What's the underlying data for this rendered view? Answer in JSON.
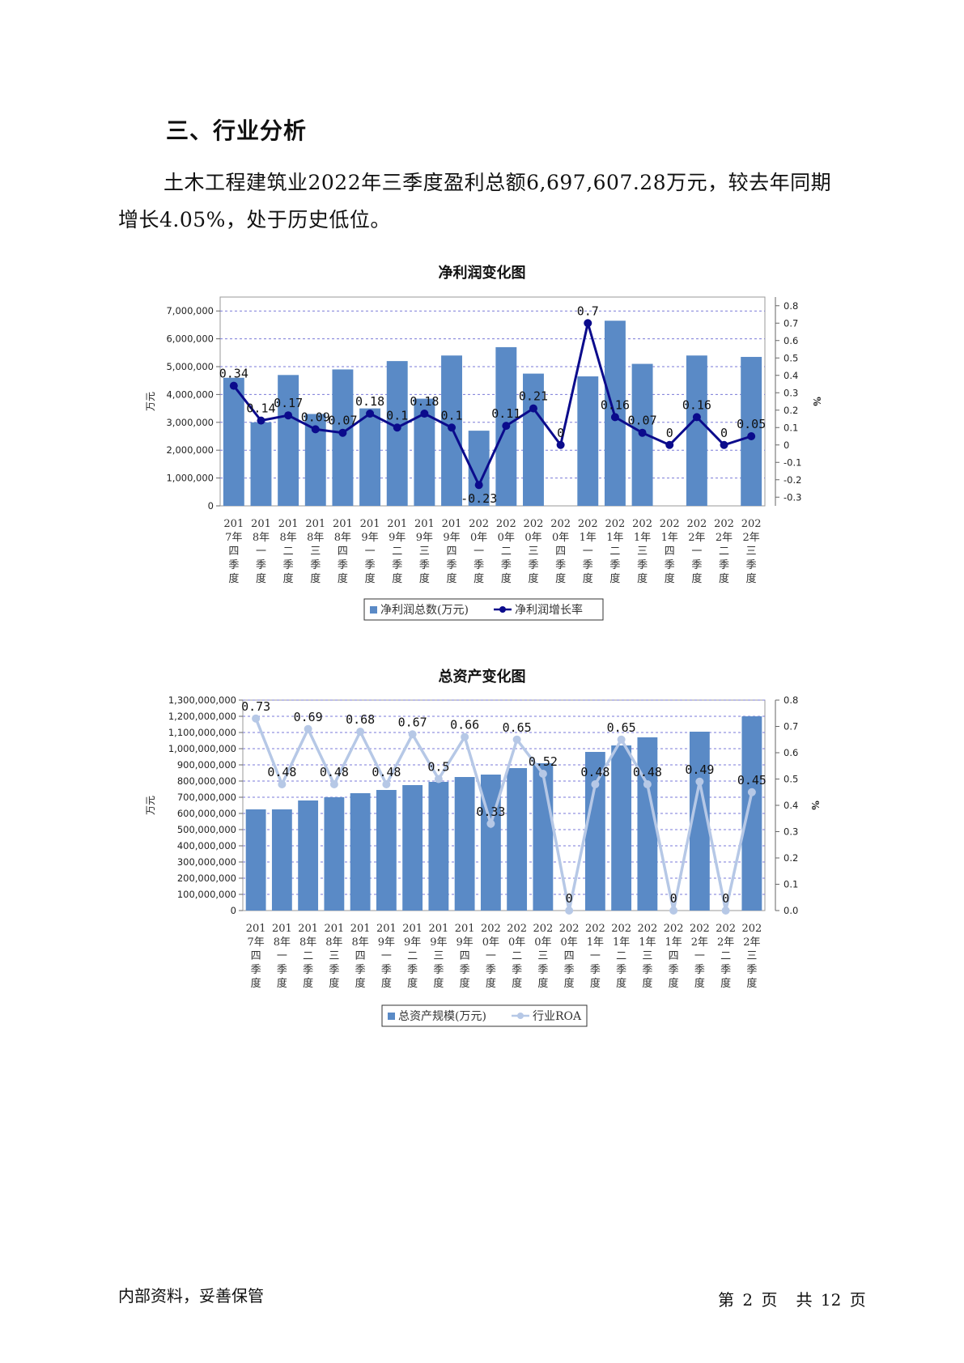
{
  "heading": "三、行业分析",
  "paragraph": "土木工程建筑业2022年三季度盈利总额6,697,607.28万元，较去年同期增长4.05%，处于历史低位。",
  "footer": {
    "left": "内部资料，妥善保管",
    "page_prefix": "第",
    "page_num": "2",
    "page_word": "页",
    "total_prefix": "共",
    "total_num": "12",
    "total_word": "页"
  },
  "chart_data": [
    {
      "type": "bar",
      "title": "净利润变化图",
      "ylabel": "万元",
      "y2label": "%",
      "categories": [
        "2017年四季度",
        "2018年一季度",
        "2018年二季度",
        "2018年三季度",
        "2018年四季度",
        "2019年一季度",
        "2019年二季度",
        "2019年三季度",
        "2019年四季度",
        "2020年一季度",
        "2020年二季度",
        "2020年三季度",
        "2020年四季度",
        "2021年一季度",
        "2021年二季度",
        "2021年三季度",
        "2021年四季度",
        "2022年一季度",
        "2022年二季度",
        "2022年三季度"
      ],
      "category_lines": [
        [
          "201",
          "7年",
          "四",
          "季",
          "度"
        ],
        [
          "201",
          "8年",
          "一",
          "季",
          "度"
        ],
        [
          "201",
          "8年",
          "二",
          "季",
          "度"
        ],
        [
          "201",
          "8年",
          "三",
          "季",
          "度"
        ],
        [
          "201",
          "8年",
          "四",
          "季",
          "度"
        ],
        [
          "201",
          "9年",
          "一",
          "季",
          "度"
        ],
        [
          "201",
          "9年",
          "二",
          "季",
          "度"
        ],
        [
          "201",
          "9年",
          "三",
          "季",
          "度"
        ],
        [
          "201",
          "9年",
          "四",
          "季",
          "度"
        ],
        [
          "202",
          "0年",
          "一",
          "季",
          "度"
        ],
        [
          "202",
          "0年",
          "二",
          "季",
          "度"
        ],
        [
          "202",
          "0年",
          "三",
          "季",
          "度"
        ],
        [
          "202",
          "0年",
          "四",
          "季",
          "度"
        ],
        [
          "202",
          "1年",
          "一",
          "季",
          "度"
        ],
        [
          "202",
          "1年",
          "二",
          "季",
          "度"
        ],
        [
          "202",
          "1年",
          "三",
          "季",
          "度"
        ],
        [
          "202",
          "1年",
          "四",
          "季",
          "度"
        ],
        [
          "202",
          "2年",
          "一",
          "季",
          "度"
        ],
        [
          "202",
          "2年",
          "二",
          "季",
          "度"
        ],
        [
          "202",
          "2年",
          "三",
          "季",
          "度"
        ]
      ],
      "series": [
        {
          "name": "净利润总数(万元)",
          "kind": "bar",
          "axis": "left",
          "values": [
            4600000,
            3000000,
            4700000,
            3300000,
            4900000,
            3500000,
            5200000,
            3850000,
            5400000,
            2700000,
            5700000,
            4750000,
            0,
            4650000,
            6650000,
            5100000,
            0,
            5400000,
            0,
            5350000
          ]
        },
        {
          "name": "净利润增长率",
          "kind": "line",
          "axis": "right",
          "values": [
            0.34,
            0.14,
            0.17,
            0.09,
            0.07,
            0.18,
            0.1,
            0.18,
            0.1,
            -0.23,
            0.11,
            0.21,
            0,
            0.7,
            0.16,
            0.07,
            0,
            0.16,
            0,
            0.05
          ],
          "labels": [
            "0.34",
            "0.14",
            "0.17",
            "0.09",
            "0.07",
            "0.18",
            "0.1",
            "0.18",
            "0.1",
            "-0.23",
            "0.11",
            "0.21",
            "0",
            "0.7",
            "0.16",
            "0.07",
            "0",
            "0.16",
            "0",
            "0.05"
          ]
        }
      ],
      "ylim": [
        0,
        7500000
      ],
      "y_ticks": [
        0,
        1000000,
        2000000,
        3000000,
        4000000,
        5000000,
        6000000,
        7000000
      ],
      "y_tick_labels": [
        "0",
        "1,000,000",
        "2,000,000",
        "3,000,000",
        "4,000,000",
        "5,000,000",
        "6,000,000",
        "7,000,000"
      ],
      "y2lim": [
        -0.35,
        0.85
      ],
      "y2_ticks": [
        -0.3,
        -0.2,
        -0.1,
        0,
        0.1,
        0.2,
        0.3,
        0.4,
        0.5,
        0.6,
        0.7,
        0.8
      ],
      "y2_tick_labels": [
        "-0.3",
        "-0.2",
        "-0.1",
        "0",
        "0.1",
        "0.2",
        "0.3",
        "0.4",
        "0.5",
        "0.6",
        "0.7",
        "0.8"
      ],
      "grid": true,
      "legend": "bottom-center",
      "colors": {
        "bar": "#5a8ac6",
        "line": "#0b0b8c",
        "grid": "#7a7ad8"
      }
    },
    {
      "type": "bar",
      "title": "总资产变化图",
      "ylabel": "万元",
      "y2label": "%",
      "categories": [
        "2017年四季度",
        "2018年一季度",
        "2018年二季度",
        "2018年三季度",
        "2018年四季度",
        "2019年一季度",
        "2019年二季度",
        "2019年三季度",
        "2019年四季度",
        "2020年一季度",
        "2020年二季度",
        "2020年三季度",
        "2020年四季度",
        "2021年一季度",
        "2021年二季度",
        "2021年三季度",
        "2021年四季度",
        "2022年一季度",
        "2022年二季度",
        "2022年三季度"
      ],
      "category_lines": [
        [
          "201",
          "7年",
          "四",
          "季",
          "度"
        ],
        [
          "201",
          "8年",
          "一",
          "季",
          "度"
        ],
        [
          "201",
          "8年",
          "二",
          "季",
          "度"
        ],
        [
          "201",
          "8年",
          "三",
          "季",
          "度"
        ],
        [
          "201",
          "8年",
          "四",
          "季",
          "度"
        ],
        [
          "201",
          "9年",
          "一",
          "季",
          "度"
        ],
        [
          "201",
          "9年",
          "二",
          "季",
          "度"
        ],
        [
          "201",
          "9年",
          "三",
          "季",
          "度"
        ],
        [
          "201",
          "9年",
          "四",
          "季",
          "度"
        ],
        [
          "202",
          "0年",
          "一",
          "季",
          "度"
        ],
        [
          "202",
          "0年",
          "二",
          "季",
          "度"
        ],
        [
          "202",
          "0年",
          "三",
          "季",
          "度"
        ],
        [
          "202",
          "0年",
          "四",
          "季",
          "度"
        ],
        [
          "202",
          "1年",
          "一",
          "季",
          "度"
        ],
        [
          "202",
          "1年",
          "二",
          "季",
          "度"
        ],
        [
          "202",
          "1年",
          "三",
          "季",
          "度"
        ],
        [
          "202",
          "1年",
          "四",
          "季",
          "度"
        ],
        [
          "202",
          "2年",
          "一",
          "季",
          "度"
        ],
        [
          "202",
          "2年",
          "二",
          "季",
          "度"
        ],
        [
          "202",
          "2年",
          "三",
          "季",
          "度"
        ]
      ],
      "series": [
        {
          "name": "总资产规模(万元)",
          "kind": "bar",
          "axis": "left",
          "values": [
            625000000,
            625000000,
            680000000,
            700000000,
            725000000,
            745000000,
            775000000,
            795000000,
            825000000,
            840000000,
            880000000,
            910000000,
            0,
            980000000,
            1020000000,
            1070000000,
            0,
            1105000000,
            0,
            1200000000
          ]
        },
        {
          "name": "行业ROA",
          "kind": "line",
          "axis": "right",
          "values": [
            0.73,
            0.48,
            0.69,
            0.48,
            0.68,
            0.48,
            0.67,
            0.5,
            0.66,
            0.33,
            0.65,
            0.52,
            0,
            0.48,
            0.65,
            0.48,
            0,
            0.49,
            0,
            0.45
          ],
          "labels": [
            "0.73",
            "0.48",
            "0.69",
            "0.48",
            "0.68",
            "0.48",
            "0.67",
            "0.5",
            "0.66",
            "0.33",
            "0.65",
            "0.52",
            "0",
            "0.48",
            "0.65",
            "0.48",
            "0",
            "0.49",
            "0",
            "0.45"
          ]
        }
      ],
      "ylim": [
        0,
        1300000000
      ],
      "y_ticks": [
        0,
        100000000,
        200000000,
        300000000,
        400000000,
        500000000,
        600000000,
        700000000,
        800000000,
        900000000,
        1000000000,
        1100000000,
        1200000000,
        1300000000
      ],
      "y_tick_labels": [
        "0",
        "100,000,000",
        "200,000,000",
        "300,000,000",
        "400,000,000",
        "500,000,000",
        "600,000,000",
        "700,000,000",
        "800,000,000",
        "900,000,000",
        "1,000,000,000",
        "1,100,000,000",
        "1,200,000,000",
        "1,300,000,000"
      ],
      "y2lim": [
        0,
        0.8
      ],
      "y2_ticks": [
        0,
        0.1,
        0.2,
        0.3,
        0.4,
        0.5,
        0.6,
        0.7,
        0.8
      ],
      "y2_tick_labels": [
        "0.0",
        "0.1",
        "0.2",
        "0.3",
        "0.4",
        "0.5",
        "0.6",
        "0.7",
        "0.8"
      ],
      "grid": true,
      "legend": "bottom-center",
      "colors": {
        "bar": "#5a8ac6",
        "line": "#b6c8e6",
        "grid": "#7a7ad8"
      }
    }
  ]
}
